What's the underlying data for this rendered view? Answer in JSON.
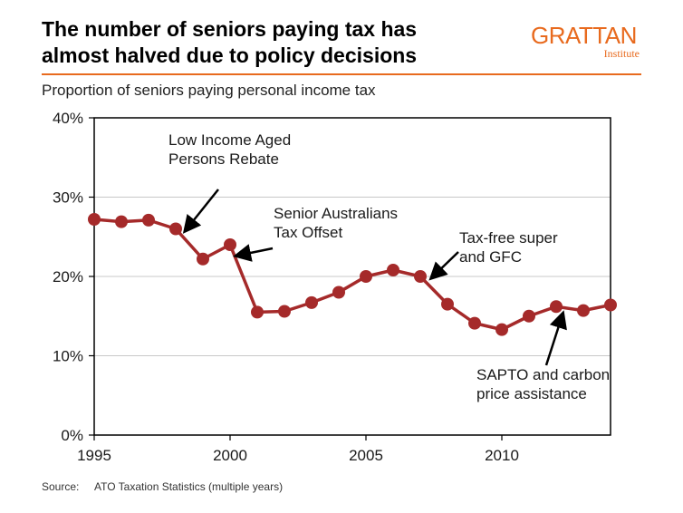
{
  "title_line1": "The number of seniors paying tax has",
  "title_line2": "almost halved due to policy decisions",
  "logo": {
    "word": "GRATTAN",
    "sub": "Institute"
  },
  "colors": {
    "accent": "#E86A1E",
    "series": "#A52A2A",
    "axis": "#000000",
    "grid": "#C8C8C8"
  },
  "source_label": "Source:",
  "source_text": "ATO Taxation Statistics (multiple years)",
  "chart_data": {
    "type": "line",
    "title": "Proportion of seniors paying personal income tax",
    "x": [
      1995,
      1996,
      1997,
      1998,
      1999,
      2000,
      2001,
      2002,
      2003,
      2004,
      2005,
      2006,
      2007,
      2008,
      2009,
      2010,
      2011,
      2012,
      2013,
      2014
    ],
    "series": [
      {
        "values": [
          27.2,
          26.9,
          27.1,
          26.0,
          22.2,
          24.0,
          15.5,
          15.6,
          16.7,
          18.0,
          20.0,
          20.8,
          20.0,
          16.5,
          14.1,
          13.3,
          15.0,
          16.2,
          15.7,
          16.4
        ]
      }
    ],
    "xlim": [
      1995,
      2014
    ],
    "ylim": [
      0,
      40
    ],
    "x_ticks": [
      1995,
      2000,
      2005,
      2010
    ],
    "y_ticks": [
      "0%",
      "10%",
      "20%",
      "30%",
      "40%"
    ],
    "grid": true,
    "annotations": [
      {
        "lines": [
          "Low Income Aged",
          "Persons Rebate"
        ],
        "target_x": 1998
      },
      {
        "lines": [
          "Senior Australians",
          "Tax Offset"
        ],
        "target_x": 2000
      },
      {
        "lines": [
          "Tax-free super",
          "and GFC"
        ],
        "target_x": 2007
      },
      {
        "lines": [
          "SAPTO and carbon",
          "price assistance"
        ],
        "target_x": 2012
      }
    ]
  }
}
